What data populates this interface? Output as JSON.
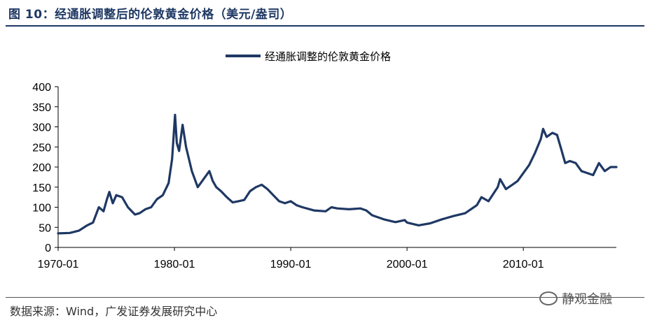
{
  "figure": {
    "title": "图 10：经通胀调整后的伦敦黄金价格（美元/盎司）",
    "source": "数据来源：Wind，广发证券发展研究中心",
    "watermark": "静观金融",
    "accent_color": "#1f3864"
  },
  "chart_data": {
    "type": "line",
    "title": "",
    "xlabel": "",
    "ylabel": "",
    "legend_position": "top-center",
    "grid": false,
    "ylim": [
      0,
      400
    ],
    "yticks": [
      0,
      50,
      100,
      150,
      200,
      250,
      300,
      350,
      400
    ],
    "xlim": [
      1970.0,
      2018.0
    ],
    "xticks": [
      {
        "value": 1970,
        "label": "1970-01"
      },
      {
        "value": 1980,
        "label": "1980-01"
      },
      {
        "value": 1990,
        "label": "1990-01"
      },
      {
        "value": 2000,
        "label": "2000-01"
      },
      {
        "value": 2010,
        "label": "2010-01"
      }
    ],
    "series": [
      {
        "name": "经通胀调整的伦敦黄金价格",
        "color": "#1f3864",
        "points": [
          [
            1970.0,
            35
          ],
          [
            1971.0,
            36
          ],
          [
            1971.8,
            42
          ],
          [
            1972.5,
            55
          ],
          [
            1973.0,
            62
          ],
          [
            1973.5,
            100
          ],
          [
            1973.9,
            90
          ],
          [
            1974.2,
            120
          ],
          [
            1974.4,
            138
          ],
          [
            1974.7,
            110
          ],
          [
            1975.0,
            130
          ],
          [
            1975.5,
            125
          ],
          [
            1976.0,
            100
          ],
          [
            1976.6,
            82
          ],
          [
            1977.0,
            85
          ],
          [
            1977.5,
            95
          ],
          [
            1978.0,
            100
          ],
          [
            1978.5,
            120
          ],
          [
            1979.0,
            130
          ],
          [
            1979.5,
            160
          ],
          [
            1979.8,
            220
          ],
          [
            1980.05,
            330
          ],
          [
            1980.2,
            260
          ],
          [
            1980.4,
            240
          ],
          [
            1980.7,
            305
          ],
          [
            1981.0,
            250
          ],
          [
            1981.5,
            190
          ],
          [
            1982.0,
            150
          ],
          [
            1982.5,
            170
          ],
          [
            1983.0,
            190
          ],
          [
            1983.3,
            165
          ],
          [
            1983.6,
            150
          ],
          [
            1984.0,
            140
          ],
          [
            1984.5,
            125
          ],
          [
            1985.0,
            112
          ],
          [
            1985.5,
            115
          ],
          [
            1986.0,
            118
          ],
          [
            1986.5,
            140
          ],
          [
            1987.0,
            150
          ],
          [
            1987.5,
            156
          ],
          [
            1988.0,
            145
          ],
          [
            1988.5,
            130
          ],
          [
            1989.0,
            115
          ],
          [
            1989.5,
            110
          ],
          [
            1990.0,
            115
          ],
          [
            1990.5,
            105
          ],
          [
            1991.0,
            100
          ],
          [
            1992.0,
            92
          ],
          [
            1993.0,
            90
          ],
          [
            1993.5,
            100
          ],
          [
            1994.0,
            97
          ],
          [
            1995.0,
            95
          ],
          [
            1996.0,
            97
          ],
          [
            1996.5,
            92
          ],
          [
            1997.0,
            80
          ],
          [
            1998.0,
            70
          ],
          [
            1999.0,
            63
          ],
          [
            1999.8,
            68
          ],
          [
            2000.0,
            62
          ],
          [
            2001.0,
            55
          ],
          [
            2002.0,
            60
          ],
          [
            2003.0,
            70
          ],
          [
            2004.0,
            78
          ],
          [
            2005.0,
            85
          ],
          [
            2006.0,
            105
          ],
          [
            2006.4,
            125
          ],
          [
            2007.0,
            115
          ],
          [
            2007.8,
            150
          ],
          [
            2008.0,
            170
          ],
          [
            2008.5,
            145
          ],
          [
            2009.0,
            155
          ],
          [
            2009.5,
            165
          ],
          [
            2010.0,
            185
          ],
          [
            2010.5,
            205
          ],
          [
            2011.0,
            235
          ],
          [
            2011.5,
            270
          ],
          [
            2011.7,
            295
          ],
          [
            2012.0,
            275
          ],
          [
            2012.5,
            285
          ],
          [
            2012.9,
            280
          ],
          [
            2013.3,
            240
          ],
          [
            2013.6,
            210
          ],
          [
            2014.0,
            215
          ],
          [
            2014.5,
            210
          ],
          [
            2015.0,
            190
          ],
          [
            2015.5,
            185
          ],
          [
            2016.0,
            180
          ],
          [
            2016.5,
            210
          ],
          [
            2017.0,
            190
          ],
          [
            2017.5,
            200
          ],
          [
            2018.0,
            200
          ]
        ]
      }
    ]
  }
}
